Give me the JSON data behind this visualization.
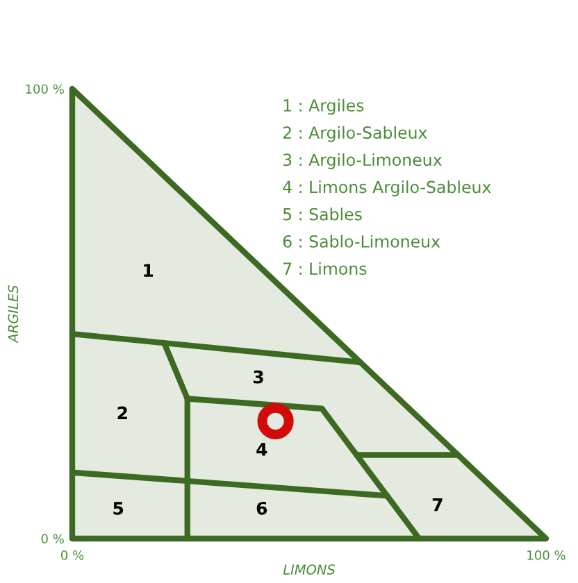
{
  "chart_data": {
    "type": "line",
    "xlabel": "LIMONS",
    "ylabel": "ARGILES",
    "xlim": [
      0,
      100
    ],
    "ylim": [
      0,
      100
    ],
    "xticks": [
      {
        "value": 0,
        "label": "0 %"
      },
      {
        "value": 100,
        "label": "100 %"
      }
    ],
    "yticks": [
      {
        "value": 0,
        "label": "0 %"
      },
      {
        "value": 100,
        "label": "100 %"
      }
    ],
    "grid": false,
    "series": [
      {
        "type": "area",
        "color": "#3d6a22",
        "x": [
          0,
          100
        ],
        "values": [
          100,
          0
        ]
      },
      {
        "color": "#3d6a22",
        "x": [
          0,
          60.8
        ],
        "values": [
          45.5,
          39.2
        ]
      },
      {
        "color": "#3d6a22",
        "x": [
          19.4,
          24.3,
          24.3
        ],
        "values": [
          43.5,
          31.1,
          0
        ]
      },
      {
        "color": "#3d6a22",
        "x": [
          24.3,
          52.7,
          73.2
        ],
        "values": [
          31.1,
          28.9,
          0
        ]
      },
      {
        "color": "#3d6a22",
        "x": [
          0,
          66.5
        ],
        "values": [
          14.7,
          9.5
        ]
      },
      {
        "color": "#3d6a22",
        "x": [
          60.0,
          81.4
        ],
        "values": [
          18.6,
          18.6
        ]
      },
      {
        "type": "scatter",
        "color": "#d10a0a",
        "x": [
          42.9
        ],
        "values": [
          26.1
        ],
        "marker": "circle"
      }
    ],
    "annotations": [
      "1",
      "2",
      "3",
      "4",
      "5",
      "6",
      "7",
      "1 : Argiles",
      "2 : Argilo-Sableux",
      "3 : Argilo-Limoneux",
      "4 : Limons Argilo-Sableux",
      "5 : Sables",
      "6 : Sablo-Limoneux",
      "7 : Limons"
    ]
  }
}
